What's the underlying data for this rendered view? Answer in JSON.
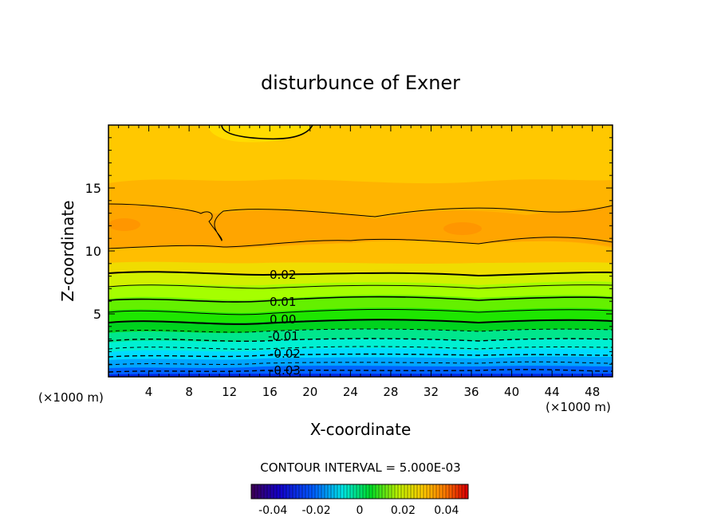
{
  "chart_data": {
    "type": "heatmap",
    "title": "disturbunce of Exner",
    "xlabel": "X-coordinate",
    "ylabel": "Z-coordinate",
    "x_unit_left": "(×1000 m)",
    "x_unit_right": "(×1000 m)",
    "xlim": [
      0,
      50
    ],
    "ylim": [
      0,
      20
    ],
    "x_ticks": [
      "4",
      "8",
      "12",
      "16",
      "20",
      "24",
      "28",
      "32",
      "36",
      "40",
      "44",
      "48"
    ],
    "y_ticks": [
      "5",
      "10",
      "15"
    ],
    "contour_interval_text": "CONTOUR INTERVAL = 5.000E-03",
    "contour_labels": [
      "0.02",
      "0.01",
      "0.00",
      "-0.01",
      "-0.02",
      "-0.03"
    ],
    "colorbar": {
      "range": [
        -0.05,
        0.05
      ],
      "tick_labels": [
        "-0.04",
        "-0.02",
        "0",
        "0.02",
        "0.04"
      ]
    },
    "field_levels_by_height": [
      {
        "z": 0.5,
        "value": -0.035
      },
      {
        "z": 1.5,
        "value": -0.025
      },
      {
        "z": 2.5,
        "value": -0.015
      },
      {
        "z": 3.5,
        "value": -0.005
      },
      {
        "z": 4.5,
        "value": 0.0
      },
      {
        "z": 6.0,
        "value": 0.01
      },
      {
        "z": 8.0,
        "value": 0.02
      },
      {
        "z": 12.0,
        "value": 0.03
      },
      {
        "z": 16.0,
        "value": 0.028
      },
      {
        "z": 19.5,
        "value": 0.025
      }
    ]
  }
}
